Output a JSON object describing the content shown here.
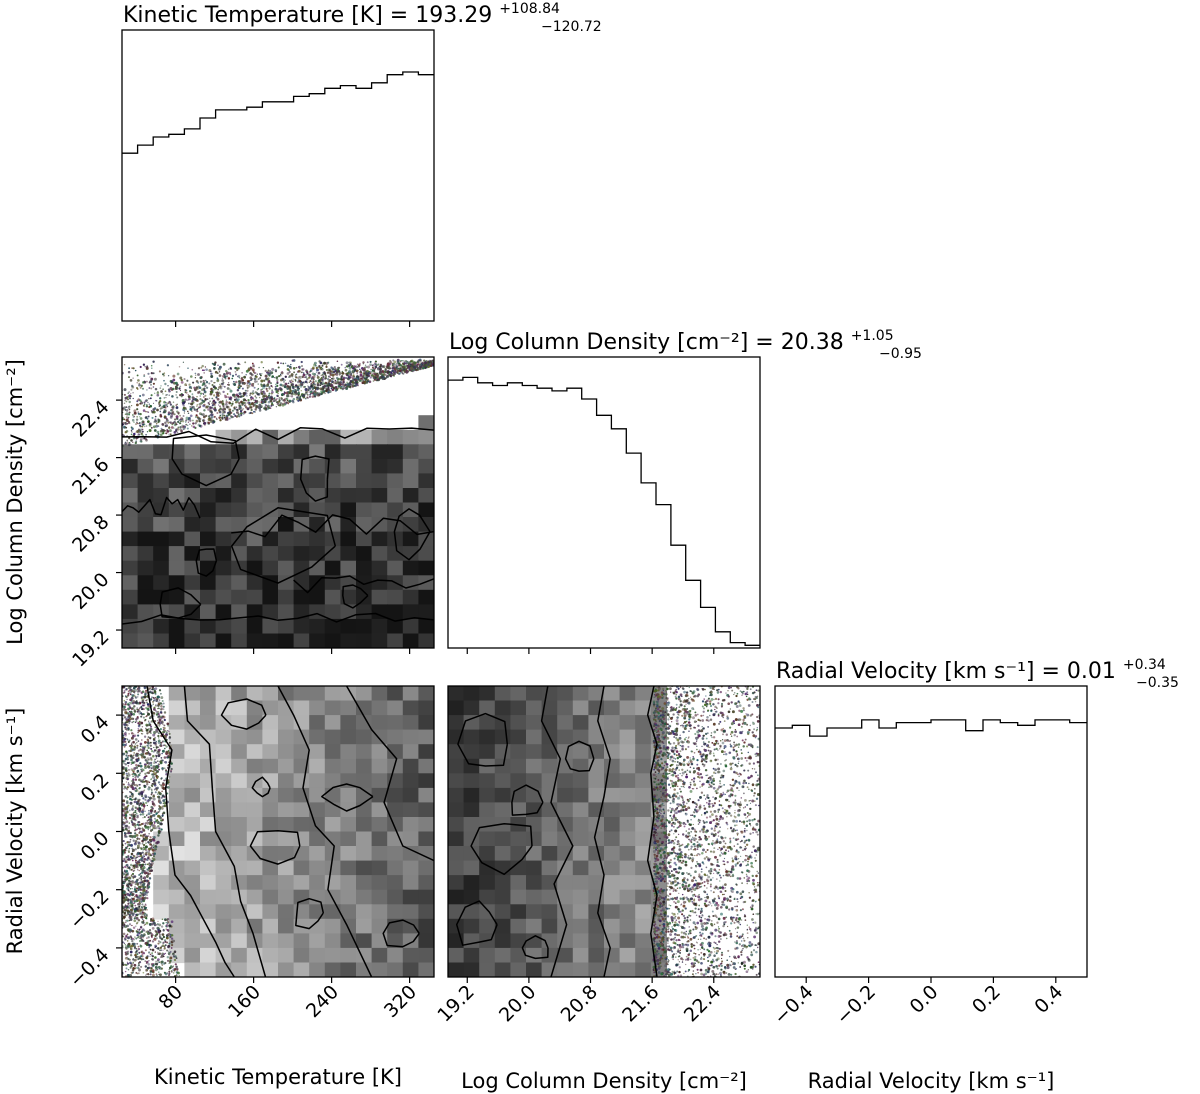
{
  "chart_data": {
    "type": "corner",
    "colors": {
      "hist": "#000000",
      "contour": "#000000",
      "frame": "#000000",
      "background": "#ffffff"
    },
    "parameters": [
      {
        "key": "temp",
        "label": "Kinetic Temperature [K]",
        "title_prefix": "Kinetic Temperature [K] = ",
        "median": "193.29",
        "plus": "+108.84",
        "minus": "−120.72",
        "range": [
          25,
          345
        ],
        "ticks": [
          80,
          160,
          240,
          320
        ],
        "tick_labels": [
          "80",
          "160",
          "240",
          "320"
        ]
      },
      {
        "key": "logn",
        "label": "Log Column Density [cm⁻²]",
        "title_prefix": "Log Column Density [cm⁻²] = ",
        "median": "20.38",
        "plus": "+1.05",
        "minus": "−0.95",
        "range": [
          18.95,
          23.0
        ],
        "ticks": [
          19.2,
          20.0,
          20.8,
          21.6,
          22.4
        ],
        "tick_labels": [
          "19.2",
          "20.0",
          "20.8",
          "21.6",
          "22.4"
        ]
      },
      {
        "key": "vel",
        "label": "Radial Velocity [km s⁻¹]",
        "title_prefix": "Radial Velocity [km s⁻¹] = ",
        "median": "0.01",
        "plus": "+0.34",
        "minus": "−0.35",
        "range": [
          -0.5,
          0.5
        ],
        "ticks": [
          -0.4,
          -0.2,
          0.0,
          0.2,
          0.4
        ],
        "tick_labels": [
          "−0.4",
          "−0.2",
          "0.0",
          "0.2",
          "0.4"
        ]
      }
    ],
    "histograms": [
      {
        "param": "temp",
        "counts": [
          0.62,
          0.65,
          0.68,
          0.69,
          0.71,
          0.75,
          0.78,
          0.78,
          0.79,
          0.81,
          0.81,
          0.83,
          0.84,
          0.86,
          0.87,
          0.86,
          0.88,
          0.91,
          0.92,
          0.91
        ]
      },
      {
        "param": "logn",
        "counts": [
          0.99,
          1.0,
          0.98,
          0.97,
          0.98,
          0.97,
          0.96,
          0.95,
          0.96,
          0.92,
          0.86,
          0.81,
          0.72,
          0.61,
          0.53,
          0.38,
          0.25,
          0.15,
          0.06,
          0.02,
          0.01
        ]
      },
      {
        "param": "vel",
        "counts": [
          0.92,
          0.93,
          0.89,
          0.92,
          0.92,
          0.95,
          0.92,
          0.94,
          0.94,
          0.95,
          0.95,
          0.91,
          0.95,
          0.94,
          0.93,
          0.95,
          0.95,
          0.94
        ]
      }
    ],
    "joint_panels": [
      {
        "x": "temp",
        "y": "logn"
      },
      {
        "x": "temp",
        "y": "vel"
      },
      {
        "x": "logn",
        "y": "vel"
      }
    ]
  }
}
